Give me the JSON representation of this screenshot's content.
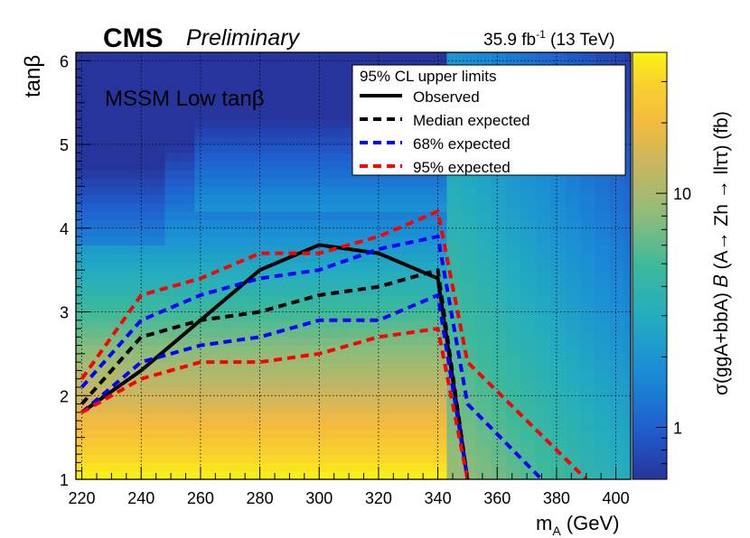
{
  "header": {
    "experiment": "CMS",
    "status": "Preliminary",
    "lumi": "35.9 fb",
    "lumi_exp": "-1",
    "energy": " (13 TeV)"
  },
  "annotation": {
    "scenario": "MSSM Low tanβ"
  },
  "chart_data": {
    "type": "heatmap",
    "xlabel": "m",
    "xlabel_sub": "A",
    "xlabel_unit": " (GeV)",
    "ylabel": "tanβ",
    "zlabel": "σ(ggA+bbA) 𝐵 (A→ Zh → llττ) (fb)",
    "xlim": [
      218,
      405
    ],
    "ylim": [
      1,
      6.1
    ],
    "x_ticks": [
      220,
      240,
      260,
      280,
      300,
      320,
      340,
      360,
      380,
      400
    ],
    "y_ticks": [
      1,
      2,
      3,
      4,
      5,
      6
    ],
    "z_scale": "log",
    "zlim": [
      0.6,
      40
    ],
    "z_ticks": [
      1,
      10
    ],
    "grid": true,
    "legend": {
      "title": "95% CL upper limits",
      "position": "top-center",
      "entries": [
        "Observed",
        "Median expected",
        "68% expected",
        "95% expected"
      ]
    },
    "series": [
      {
        "name": "Observed",
        "style": "solid",
        "color": "#000000",
        "x": [
          220,
          240,
          260,
          280,
          300,
          320,
          340,
          350
        ],
        "y": [
          1.8,
          2.3,
          2.9,
          3.5,
          3.8,
          3.7,
          3.4,
          1.0
        ]
      },
      {
        "name": "Median expected",
        "style": "dashed",
        "color": "#000000",
        "x": [
          220,
          240,
          260,
          280,
          300,
          320,
          340,
          350
        ],
        "y": [
          1.9,
          2.7,
          2.9,
          3.0,
          3.2,
          3.3,
          3.5,
          1.0
        ]
      },
      {
        "name": "68% expected (upper)",
        "style": "dashed",
        "color": "#0000ff",
        "x": [
          220,
          240,
          260,
          280,
          300,
          320,
          340,
          350,
          375
        ],
        "y": [
          2.1,
          2.9,
          3.2,
          3.4,
          3.5,
          3.75,
          3.9,
          1.9,
          1.0
        ]
      },
      {
        "name": "68% expected (lower)",
        "style": "dashed",
        "color": "#0000ff",
        "x": [
          220,
          240,
          260,
          280,
          300,
          320,
          340,
          350
        ],
        "y": [
          1.8,
          2.4,
          2.6,
          2.7,
          2.9,
          2.9,
          3.2,
          1.0
        ]
      },
      {
        "name": "95% expected (upper)",
        "style": "dashed",
        "color": "#ff0000",
        "x": [
          220,
          240,
          260,
          280,
          300,
          320,
          340,
          350,
          390
        ],
        "y": [
          2.2,
          3.2,
          3.4,
          3.7,
          3.7,
          3.9,
          4.2,
          2.4,
          1.0
        ]
      },
      {
        "name": "95% expected (lower)",
        "style": "dashed",
        "color": "#ff0000",
        "x": [
          220,
          240,
          260,
          280,
          300,
          320,
          340,
          350
        ],
        "y": [
          1.8,
          2.2,
          2.4,
          2.4,
          2.5,
          2.7,
          2.8,
          1.0
        ]
      }
    ]
  }
}
